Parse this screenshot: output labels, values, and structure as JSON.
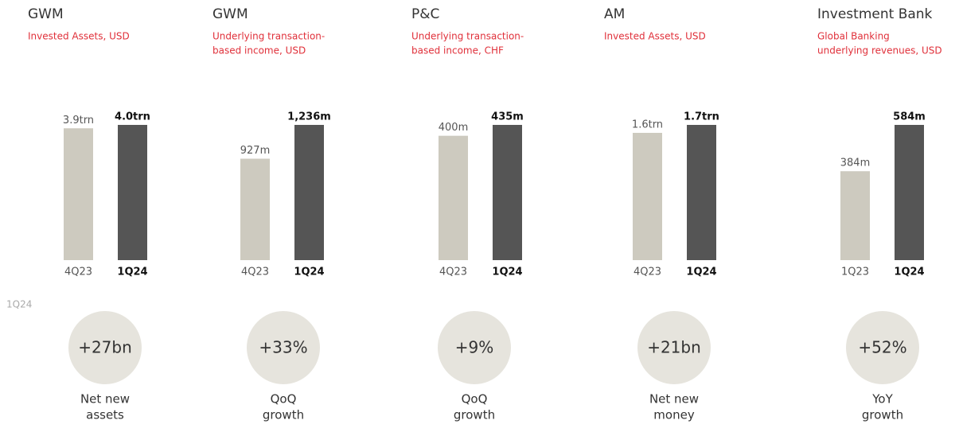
{
  "period_label": "1Q24",
  "chart_data": [
    {
      "type": "bar",
      "title": "GWM",
      "subtitle": [
        "Invested Assets, USD"
      ],
      "categories": [
        "4Q23",
        "1Q24"
      ],
      "values": [
        3.9,
        4.0
      ],
      "value_labels": [
        "3.9trn",
        "4.0trn"
      ],
      "colors": [
        "#cdcabf",
        "#555555"
      ],
      "highlight": {
        "label": "+27bn",
        "caption": [
          "Net new",
          "assets"
        ]
      }
    },
    {
      "type": "bar",
      "title": "GWM",
      "subtitle": [
        "Underlying transaction-",
        "based income, USD"
      ],
      "categories": [
        "4Q23",
        "1Q24"
      ],
      "values": [
        927,
        1236
      ],
      "value_labels": [
        "927m",
        "1,236m"
      ],
      "colors": [
        "#cdcabf",
        "#555555"
      ],
      "highlight": {
        "label": "+33%",
        "caption": [
          "QoQ",
          "growth"
        ]
      }
    },
    {
      "type": "bar",
      "title": "P&C",
      "subtitle": [
        "Underlying transaction-",
        "based income, CHF"
      ],
      "categories": [
        "4Q23",
        "1Q24"
      ],
      "values": [
        400,
        435
      ],
      "value_labels": [
        "400m",
        "435m"
      ],
      "colors": [
        "#cdcabf",
        "#555555"
      ],
      "highlight": {
        "label": "+9%",
        "caption": [
          "QoQ",
          "growth"
        ]
      }
    },
    {
      "type": "bar",
      "title": "AM",
      "subtitle": [
        "Invested Assets, USD"
      ],
      "categories": [
        "4Q23",
        "1Q24"
      ],
      "values": [
        1.6,
        1.7
      ],
      "value_labels": [
        "1.6trn",
        "1.7trn"
      ],
      "colors": [
        "#cdcabf",
        "#555555"
      ],
      "highlight": {
        "label": "+21bn",
        "caption": [
          "Net new",
          "money"
        ]
      }
    },
    {
      "type": "bar",
      "title": "Investment Bank",
      "subtitle": [
        "Global Banking",
        "underlying revenues, USD"
      ],
      "categories": [
        "1Q23",
        "1Q24"
      ],
      "values": [
        384,
        584
      ],
      "value_labels": [
        "384m",
        "584m"
      ],
      "colors": [
        "#cdcabf",
        "#555555"
      ],
      "highlight": {
        "label": "+52%",
        "caption": [
          "YoY",
          "growth"
        ]
      }
    }
  ]
}
